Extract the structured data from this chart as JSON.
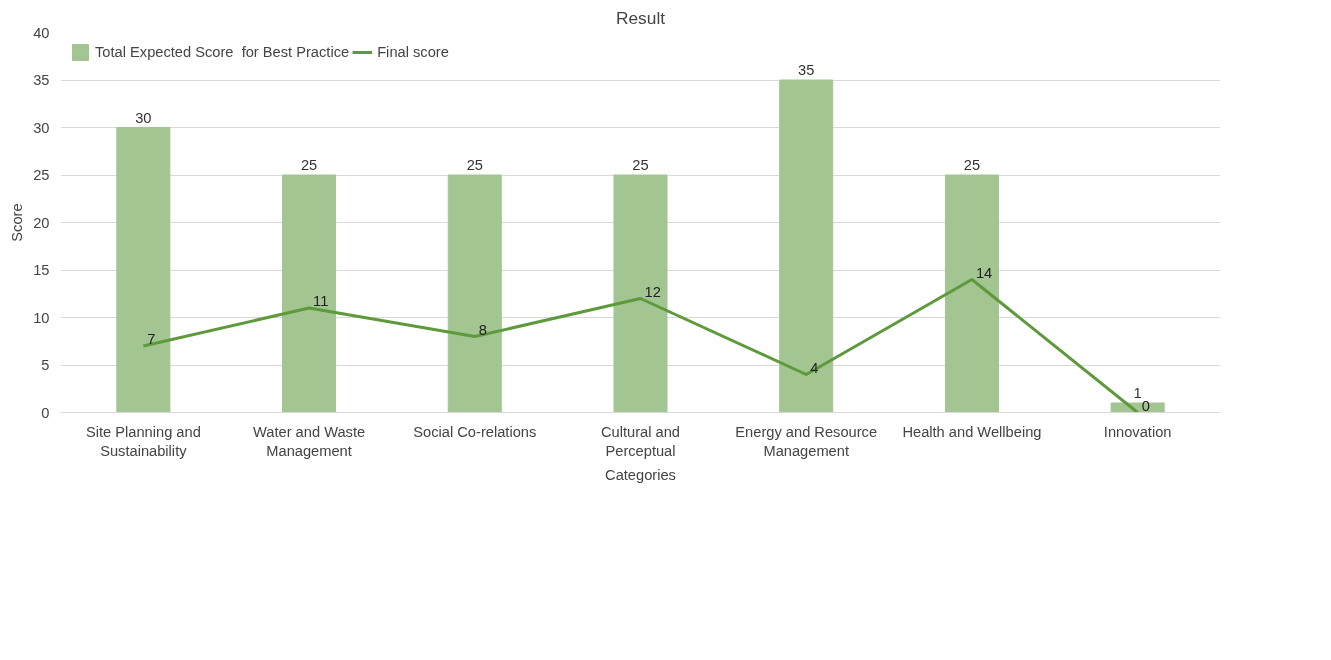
{
  "chart_data": {
    "type": "bar",
    "title": "Result",
    "xlabel": "Categories",
    "ylabel": "Score",
    "categories": [
      "Site Planning and Sustainability",
      "Water and Waste Management",
      "Social Co-relations",
      "Cultural and Perceptual",
      "Energy and Resource Management",
      "Health and Wellbeing",
      "Innovation"
    ],
    "series": [
      {
        "name": "Total Expected Score  for Best Practice",
        "color": "#a2c592",
        "values": [
          30,
          25,
          25,
          25,
          35,
          25,
          1
        ]
      },
      {
        "name": "Final score",
        "type": "line",
        "color": "#5e9a3c",
        "values": [
          7,
          11,
          8,
          12,
          4,
          14,
          0
        ]
      }
    ],
    "ylim": [
      0,
      40
    ],
    "yticks": [
      0,
      5,
      10,
      15,
      20,
      25,
      30,
      35,
      40
    ],
    "grid": "y",
    "legend": "top left",
    "data_labels": true
  }
}
